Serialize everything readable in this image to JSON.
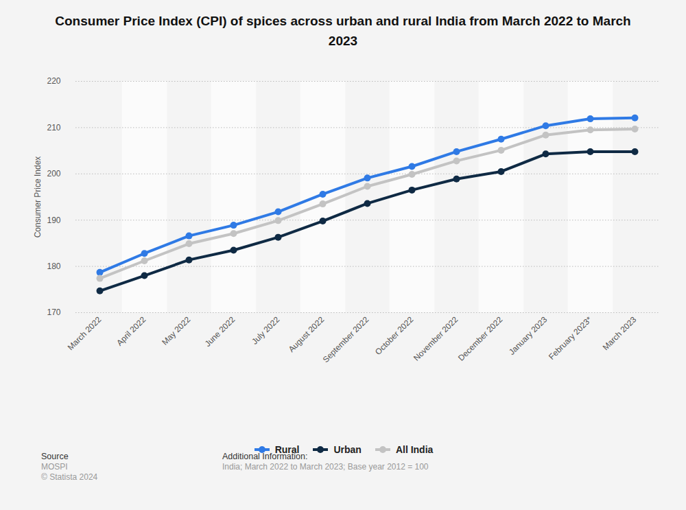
{
  "chart_data": {
    "type": "line",
    "title": "Consumer Price Index (CPI) of spices across urban and rural India from March 2022 to March 2023",
    "categories": [
      "March 2022",
      "April 2022",
      "May 2022",
      "June 2022",
      "July 2022",
      "August 2022",
      "September 2022",
      "October 2022",
      "November 2022",
      "December 2022",
      "January 2023",
      "February 2023*",
      "March 2023"
    ],
    "series": [
      {
        "name": "Rural",
        "color": "#2f7ae5",
        "marker": "circle",
        "values": [
          178.7,
          182.8,
          186.6,
          188.9,
          191.8,
          195.6,
          199.1,
          201.6,
          204.8,
          207.5,
          210.4,
          211.9,
          212.1
        ]
      },
      {
        "name": "Urban",
        "color": "#0f2a44",
        "marker": "circle",
        "values": [
          174.7,
          178.0,
          181.4,
          183.5,
          186.3,
          189.8,
          193.6,
          196.5,
          198.9,
          200.5,
          204.3,
          204.8,
          204.8
        ]
      },
      {
        "name": "All India",
        "color": "#c3c3c3",
        "marker": "circle",
        "values": [
          177.4,
          181.2,
          184.9,
          187.1,
          189.9,
          193.5,
          197.3,
          199.9,
          202.8,
          205.1,
          208.4,
          209.5,
          209.7
        ]
      }
    ],
    "y_label": "Consumer Price Index",
    "ylim": [
      170,
      220
    ],
    "yticks": [
      170,
      180,
      190,
      200,
      210,
      220
    ],
    "grid": true,
    "legend": "bottom",
    "source_label": "Source",
    "source": "MOSPI",
    "copyright": "© Statista 2024",
    "additional_info_label": "Additional Information:",
    "additional_info": "India; March 2022 to March 2023; Base year 2012 = 100"
  }
}
